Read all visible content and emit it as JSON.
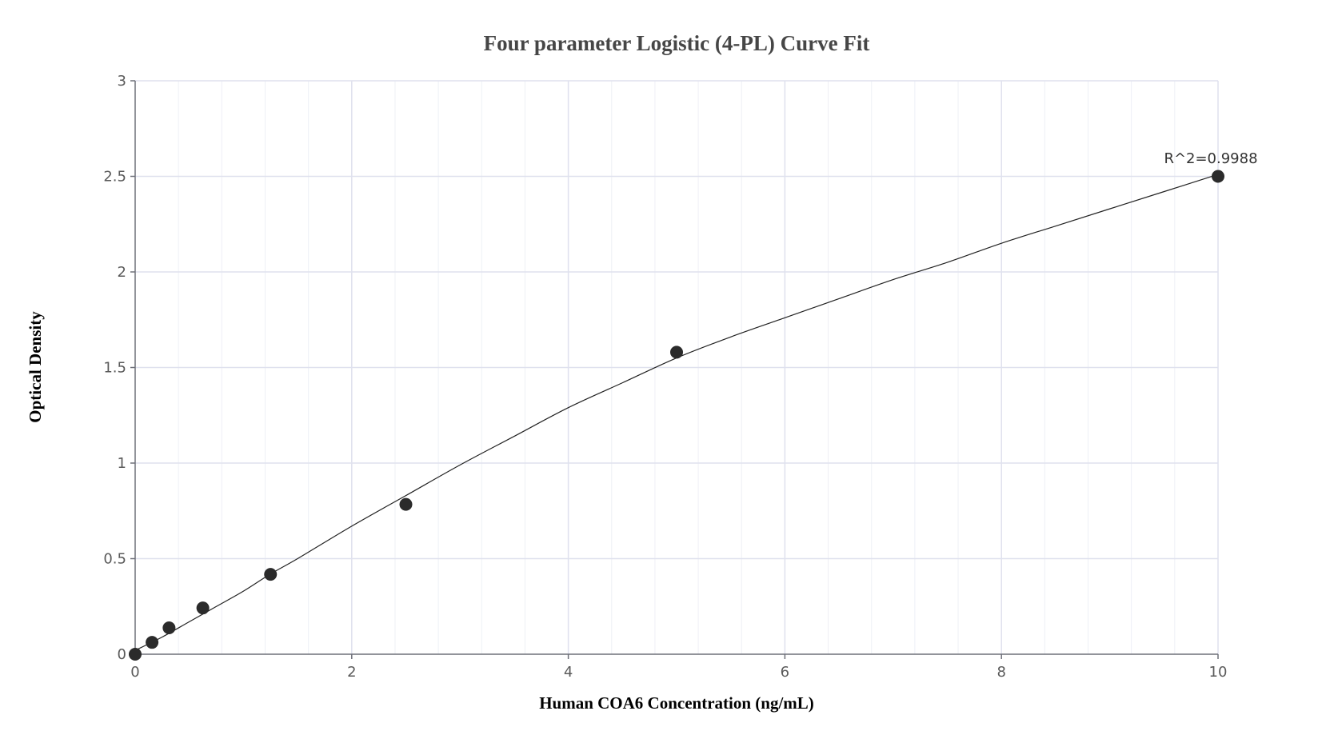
{
  "chart_data": {
    "type": "scatter",
    "title": "Four parameter Logistic (4-PL) Curve Fit",
    "xlabel": "Human COA6 Concentration (ng/mL)",
    "ylabel": "Optical Density",
    "xlim": [
      0,
      10
    ],
    "ylim": [
      0,
      3
    ],
    "x_ticks": [
      "0",
      "2",
      "4",
      "6",
      "8",
      "10"
    ],
    "y_ticks": [
      "0",
      "0.5",
      "1",
      "1.5",
      "2",
      "2.5",
      "3"
    ],
    "grid": true,
    "series": [
      {
        "type": "scatter",
        "x": [
          0,
          0.156,
          0.313,
          0.625,
          1.25,
          2.5,
          5,
          10
        ],
        "y": [
          0.0,
          0.062,
          0.138,
          0.242,
          0.418,
          0.784,
          1.58,
          2.5
        ]
      },
      {
        "type": "line",
        "x": [
          0,
          0.25,
          0.5,
          0.75,
          1,
          1.25,
          1.5,
          2,
          2.5,
          3,
          3.5,
          4,
          4.5,
          5,
          5.5,
          6,
          6.5,
          7,
          7.5,
          8,
          8.5,
          9,
          9.5,
          10
        ],
        "y": [
          0.02,
          0.09,
          0.17,
          0.25,
          0.33,
          0.42,
          0.5,
          0.67,
          0.83,
          0.99,
          1.14,
          1.29,
          1.42,
          1.55,
          1.66,
          1.76,
          1.86,
          1.96,
          2.05,
          2.15,
          2.24,
          2.33,
          2.42,
          2.51
        ]
      }
    ],
    "annotation": "R^2=0.9988",
    "colors": {
      "points": "#2b2b2b",
      "curve": "#222222",
      "grid_major": "#dfe1ee",
      "grid_minor": "#eef0f6",
      "axis": "#6e7079"
    }
  }
}
